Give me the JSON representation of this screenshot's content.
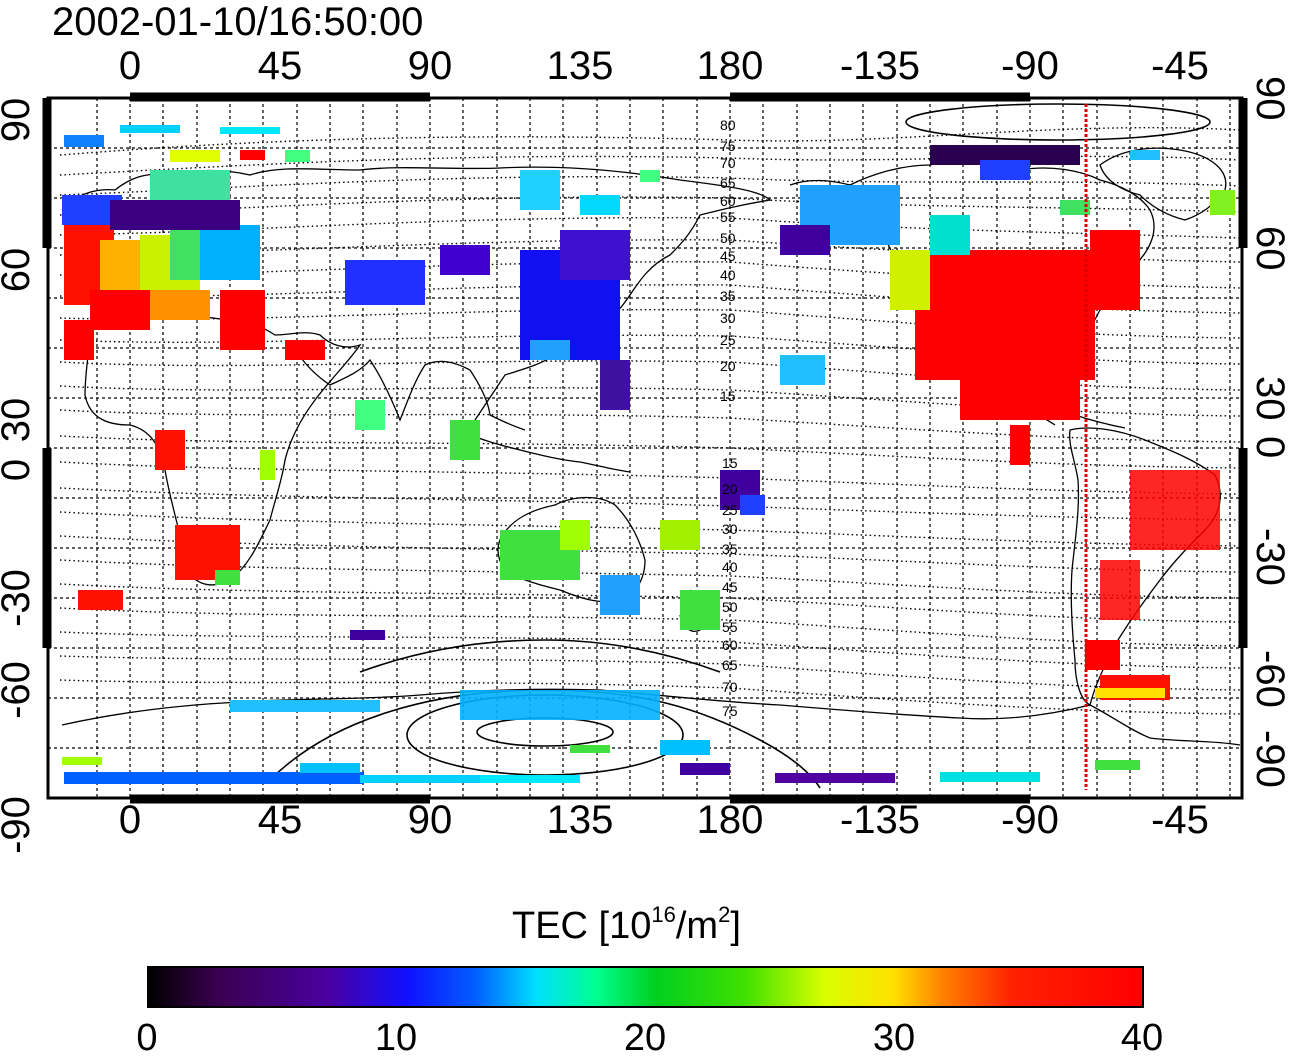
{
  "title": "2002-01-10/16:50:00",
  "axes": {
    "lon_ticks": [
      "0",
      "45",
      "90",
      "135",
      "180",
      "-135",
      "-90",
      "-45"
    ],
    "lat_ticks": [
      "90",
      "60",
      "30",
      "0",
      "-30",
      "-60",
      "-90"
    ]
  },
  "magnetic_latitude_labels": {
    "north": [
      "80",
      "75",
      "70",
      "65",
      "60",
      "55",
      "50",
      "45",
      "40",
      "35",
      "30",
      "25",
      "20",
      "15"
    ],
    "south": [
      "15",
      "20",
      "25",
      "30",
      "35",
      "40",
      "45",
      "50",
      "55",
      "60",
      "65",
      "70",
      "75"
    ]
  },
  "colorbar": {
    "label_main": "TEC  [10",
    "label_sup1": "16",
    "label_mid": "/m",
    "label_sup2": "2",
    "label_end": "]",
    "ticks": [
      "0",
      "10",
      "20",
      "30",
      "40"
    ],
    "range": [
      0,
      40
    ]
  },
  "colors": {
    "terminator_line": "#dd0000",
    "frame": "#000000"
  }
}
